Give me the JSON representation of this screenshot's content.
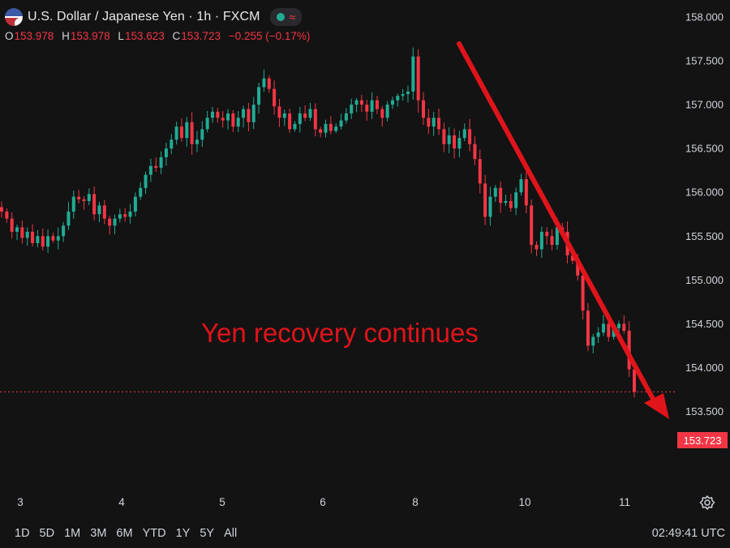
{
  "header": {
    "title": "U.S. Dollar / Japanese Yen · 1h · FXCM",
    "flag_icon": "us-jp-flag-icon",
    "status_icon": "market-open-dot-icon",
    "status_symbol": "≈",
    "ohlc": {
      "o_label": "O",
      "o": "153.978",
      "h_label": "H",
      "h": "153.978",
      "l_label": "L",
      "l": "153.623",
      "c_label": "C",
      "c": "153.723",
      "change": "−0.255 (−0.17%)"
    }
  },
  "annotation": "Yen recovery continues",
  "colors": {
    "up": "#22ab94",
    "down": "#f23645",
    "arrow": "#e0141b",
    "bg": "#131313"
  },
  "current_price_label": "153.723",
  "range_buttons": [
    "1D",
    "5D",
    "1M",
    "3M",
    "6M",
    "YTD",
    "1Y",
    "5Y",
    "All"
  ],
  "clock": "02:49:41 UTC",
  "settings_icon": "gear-icon",
  "chart_data": {
    "type": "candlestick",
    "title": "U.S. Dollar / Japanese Yen · 1h · FXCM",
    "y_ticks": [
      "158.000",
      "157.500",
      "157.000",
      "156.500",
      "156.000",
      "155.500",
      "155.000",
      "154.500",
      "154.000",
      "153.500"
    ],
    "x_ticks": [
      "3",
      "4",
      "5",
      "6",
      "8",
      "10",
      "11"
    ],
    "ylim": [
      153.25,
      158.1
    ],
    "last_price": 153.723,
    "grid": false,
    "close_path": [
      155.78,
      155.7,
      155.55,
      155.6,
      155.48,
      155.55,
      155.42,
      155.5,
      155.38,
      155.5,
      155.45,
      155.5,
      155.62,
      155.78,
      155.95,
      155.92,
      155.9,
      155.98,
      155.75,
      155.85,
      155.7,
      155.62,
      155.7,
      155.75,
      155.72,
      155.78,
      155.95,
      156.05,
      156.2,
      156.3,
      156.28,
      156.4,
      156.5,
      156.6,
      156.75,
      156.62,
      156.8,
      156.55,
      156.6,
      156.72,
      156.85,
      156.92,
      156.85,
      156.82,
      156.9,
      156.75,
      156.85,
      156.95,
      156.8,
      157.0,
      157.2,
      157.3,
      157.18,
      156.98,
      156.85,
      156.9,
      156.72,
      156.78,
      156.9,
      156.85,
      156.95,
      156.72,
      156.68,
      156.78,
      156.7,
      156.75,
      156.82,
      156.9,
      157.0,
      157.05,
      157.0,
      156.92,
      157.05,
      156.95,
      156.85,
      157.0,
      157.05,
      157.1,
      157.12,
      157.15,
      157.55,
      157.05,
      156.85,
      156.75,
      156.85,
      156.72,
      156.55,
      156.65,
      156.5,
      156.62,
      156.72,
      156.55,
      156.38,
      156.1,
      155.72,
      155.95,
      156.05,
      155.88,
      155.9,
      155.82,
      156.0,
      156.15,
      155.85,
      155.4,
      155.35,
      155.55,
      155.5,
      155.4,
      155.6,
      155.55,
      155.28,
      155.22,
      155.05,
      154.65,
      154.25,
      154.35,
      154.4,
      154.5,
      154.35,
      154.45,
      154.5,
      154.42,
      153.98,
      153.723
    ]
  }
}
